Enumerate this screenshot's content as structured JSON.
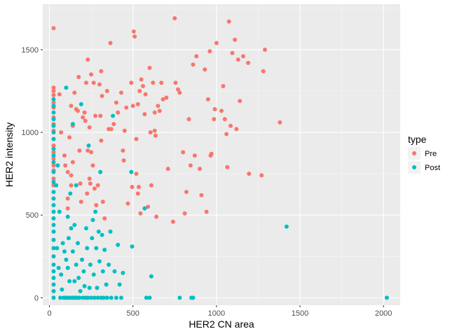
{
  "chart_data": {
    "type": "scatter",
    "xlabel": "HER2 CN area",
    "ylabel": "HER2 intensity",
    "xlim": [
      -40,
      2100
    ],
    "ylim": [
      -45,
      1775
    ],
    "x_ticks": [
      0,
      500,
      1000,
      1500,
      2000
    ],
    "y_ticks": [
      0,
      500,
      1000,
      1500
    ],
    "x_tick_labels": [
      "0",
      "500",
      "1000",
      "1500",
      "2000"
    ],
    "y_tick_labels": [
      "0",
      "500",
      "1000",
      "1500"
    ],
    "grid": true,
    "legend": {
      "title": "type",
      "placement": "right"
    },
    "series": [
      {
        "name": "Pre",
        "color": "#F8766D",
        "points": [
          [
            25,
            1630
          ],
          [
            25,
            1270
          ],
          [
            25,
            1250
          ],
          [
            25,
            1225
          ],
          [
            25,
            1180
          ],
          [
            25,
            1150
          ],
          [
            25,
            1090
          ],
          [
            25,
            1050
          ],
          [
            25,
            1010
          ],
          [
            25,
            960
          ],
          [
            25,
            920
          ],
          [
            25,
            880
          ],
          [
            25,
            840
          ],
          [
            25,
            800
          ],
          [
            25,
            770
          ],
          [
            25,
            720
          ],
          [
            25,
            680
          ],
          [
            60,
            1230
          ],
          [
            70,
            1000
          ],
          [
            90,
            860
          ],
          [
            95,
            800
          ],
          [
            110,
            760
          ],
          [
            110,
            600
          ],
          [
            110,
            540
          ],
          [
            120,
            970
          ],
          [
            130,
            740
          ],
          [
            130,
            680
          ],
          [
            130,
            1160
          ],
          [
            140,
            1040
          ],
          [
            140,
            820
          ],
          [
            150,
            1240
          ],
          [
            160,
            1140
          ],
          [
            170,
            1130
          ],
          [
            175,
            1335
          ],
          [
            180,
            890
          ],
          [
            185,
            690
          ],
          [
            190,
            580
          ],
          [
            200,
            1090
          ],
          [
            210,
            1120
          ],
          [
            215,
            1070
          ],
          [
            220,
            1300
          ],
          [
            225,
            630
          ],
          [
            230,
            1440
          ],
          [
            230,
            890
          ],
          [
            240,
            720
          ],
          [
            240,
            1030
          ],
          [
            245,
            690
          ],
          [
            250,
            880
          ],
          [
            250,
            1350
          ],
          [
            260,
            800
          ],
          [
            265,
            1300
          ],
          [
            270,
            660
          ],
          [
            275,
            1100
          ],
          [
            280,
            560
          ],
          [
            290,
            680
          ],
          [
            300,
            1290
          ],
          [
            305,
            1100
          ],
          [
            310,
            950
          ],
          [
            310,
            1370
          ],
          [
            315,
            1220
          ],
          [
            320,
            580
          ],
          [
            330,
            480
          ],
          [
            345,
            1250
          ],
          [
            355,
            1020
          ],
          [
            365,
            1540
          ],
          [
            370,
            1020
          ],
          [
            385,
            1050
          ],
          [
            400,
            1180
          ],
          [
            410,
            1120
          ],
          [
            430,
            1240
          ],
          [
            440,
            890
          ],
          [
            445,
            830
          ],
          [
            450,
            1010
          ],
          [
            460,
            1150
          ],
          [
            470,
            570
          ],
          [
            490,
            1300
          ],
          [
            495,
            670
          ],
          [
            500,
            1160
          ],
          [
            505,
            1610
          ],
          [
            510,
            1580
          ],
          [
            520,
            960
          ],
          [
            520,
            750
          ],
          [
            530,
            630
          ],
          [
            530,
            1170
          ],
          [
            535,
            670
          ],
          [
            540,
            1250
          ],
          [
            545,
            510
          ],
          [
            550,
            1320
          ],
          [
            560,
            1280
          ],
          [
            570,
            1110
          ],
          [
            575,
            1230
          ],
          [
            590,
            550
          ],
          [
            600,
            1390
          ],
          [
            605,
            1000
          ],
          [
            610,
            680
          ],
          [
            620,
            1300
          ],
          [
            630,
            1120
          ],
          [
            630,
            1010
          ],
          [
            635,
            980
          ],
          [
            640,
            490
          ],
          [
            650,
            1160
          ],
          [
            660,
            1130
          ],
          [
            670,
            1300
          ],
          [
            680,
            1200
          ],
          [
            700,
            1210
          ],
          [
            710,
            780
          ],
          [
            740,
            460
          ],
          [
            750,
            1690
          ],
          [
            755,
            1300
          ],
          [
            770,
            1260
          ],
          [
            780,
            1240
          ],
          [
            800,
            880
          ],
          [
            810,
            510
          ],
          [
            820,
            640
          ],
          [
            835,
            1080
          ],
          [
            845,
            800
          ],
          [
            860,
            1410
          ],
          [
            870,
            860
          ],
          [
            880,
            1460
          ],
          [
            900,
            780
          ],
          [
            910,
            620
          ],
          [
            930,
            1380
          ],
          [
            940,
            520
          ],
          [
            950,
            1200
          ],
          [
            960,
            1490
          ],
          [
            965,
            860
          ],
          [
            970,
            870
          ],
          [
            985,
            1080
          ],
          [
            990,
            1140
          ],
          [
            1000,
            1540
          ],
          [
            1030,
            1130
          ],
          [
            1040,
            1280
          ],
          [
            1050,
            1080
          ],
          [
            1060,
            990
          ],
          [
            1065,
            790
          ],
          [
            1075,
            1670
          ],
          [
            1085,
            1040
          ],
          [
            1095,
            1480
          ],
          [
            1110,
            1560
          ],
          [
            1120,
            1020
          ],
          [
            1130,
            1440
          ],
          [
            1140,
            1190
          ],
          [
            1160,
            1460
          ],
          [
            1190,
            1420
          ],
          [
            1195,
            750
          ],
          [
            1270,
            740
          ],
          [
            1280,
            1370
          ],
          [
            1290,
            1500
          ],
          [
            1380,
            1060
          ]
        ]
      },
      {
        "name": "Post",
        "color": "#00BFC4",
        "points": [
          [
            25,
            1200
          ],
          [
            25,
            1160
          ],
          [
            25,
            1120
          ],
          [
            25,
            1080
          ],
          [
            25,
            1040
          ],
          [
            25,
            1000
          ],
          [
            25,
            960
          ],
          [
            25,
            900
          ],
          [
            25,
            860
          ],
          [
            25,
            820
          ],
          [
            25,
            760
          ],
          [
            25,
            700
          ],
          [
            25,
            640
          ],
          [
            25,
            600
          ],
          [
            25,
            560
          ],
          [
            25,
            520
          ],
          [
            25,
            480
          ],
          [
            25,
            440
          ],
          [
            25,
            400
          ],
          [
            25,
            350
          ],
          [
            25,
            300
          ],
          [
            25,
            250
          ],
          [
            25,
            200
          ],
          [
            25,
            160
          ],
          [
            25,
            120
          ],
          [
            25,
            80
          ],
          [
            25,
            40
          ],
          [
            25,
            0
          ],
          [
            40,
            680
          ],
          [
            45,
            300
          ],
          [
            50,
            800
          ],
          [
            55,
            180
          ],
          [
            60,
            520
          ],
          [
            65,
            0
          ],
          [
            70,
            140
          ],
          [
            75,
            50
          ],
          [
            80,
            330
          ],
          [
            85,
            0
          ],
          [
            90,
            280
          ],
          [
            95,
            0
          ],
          [
            100,
            1270
          ],
          [
            100,
            230
          ],
          [
            105,
            0
          ],
          [
            110,
            490
          ],
          [
            110,
            180
          ],
          [
            115,
            360
          ],
          [
            120,
            100
          ],
          [
            120,
            0
          ],
          [
            125,
            630
          ],
          [
            130,
            420
          ],
          [
            135,
            0
          ],
          [
            140,
            1050
          ],
          [
            140,
            280
          ],
          [
            145,
            0
          ],
          [
            150,
            440
          ],
          [
            150,
            100
          ],
          [
            155,
            0
          ],
          [
            160,
            200
          ],
          [
            160,
            680
          ],
          [
            165,
            0
          ],
          [
            170,
            330
          ],
          [
            175,
            120
          ],
          [
            180,
            0
          ],
          [
            185,
            40
          ],
          [
            190,
            1170
          ],
          [
            195,
            230
          ],
          [
            200,
            0
          ],
          [
            205,
            160
          ],
          [
            210,
            70
          ],
          [
            215,
            0
          ],
          [
            220,
            420
          ],
          [
            225,
            300
          ],
          [
            230,
            0
          ],
          [
            235,
            920
          ],
          [
            240,
            60
          ],
          [
            245,
            200
          ],
          [
            250,
            0
          ],
          [
            255,
            360
          ],
          [
            260,
            470
          ],
          [
            265,
            140
          ],
          [
            270,
            0
          ],
          [
            275,
            520
          ],
          [
            280,
            300
          ],
          [
            285,
            60
          ],
          [
            290,
            0
          ],
          [
            295,
            400
          ],
          [
            300,
            220
          ],
          [
            305,
            760
          ],
          [
            310,
            0
          ],
          [
            315,
            380
          ],
          [
            320,
            160
          ],
          [
            325,
            0
          ],
          [
            330,
            290
          ],
          [
            340,
            80
          ],
          [
            345,
            0
          ],
          [
            355,
            200
          ],
          [
            365,
            400
          ],
          [
            370,
            0
          ],
          [
            380,
            1100
          ],
          [
            390,
            160
          ],
          [
            400,
            0
          ],
          [
            410,
            320
          ],
          [
            420,
            80
          ],
          [
            430,
            0
          ],
          [
            440,
            150
          ],
          [
            490,
            760
          ],
          [
            495,
            310
          ],
          [
            570,
            540
          ],
          [
            580,
            0
          ],
          [
            600,
            0
          ],
          [
            610,
            130
          ],
          [
            780,
            0
          ],
          [
            850,
            0
          ],
          [
            860,
            0
          ],
          [
            1420,
            430
          ],
          [
            2020,
            0
          ]
        ]
      }
    ]
  }
}
